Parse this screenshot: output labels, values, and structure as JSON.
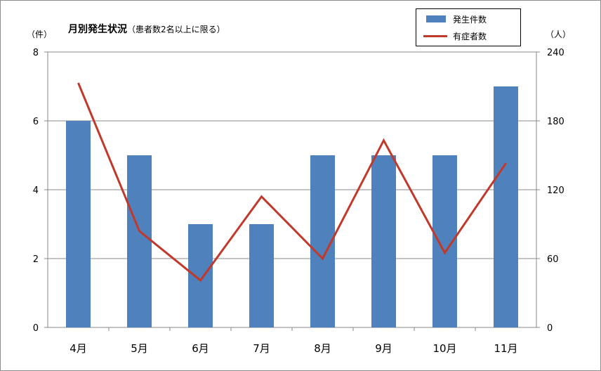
{
  "colors": {
    "bar": "#4f81bd",
    "line": "#c0392b",
    "grid": "#888888",
    "frame": "#8c8c8c"
  },
  "header": {
    "title": "月別発生状況",
    "subtitle": "（患者数2名以上に限る）"
  },
  "legend": {
    "bar_label": "発生件数",
    "line_label": "有症者数"
  },
  "axes": {
    "y_left_unit": "（件）",
    "y_right_unit": "（人）"
  },
  "chart_data": {
    "type": "bar",
    "title": "月別発生状況（患者数2名以上に限る）",
    "categories": [
      "4月",
      "5月",
      "6月",
      "7月",
      "8月",
      "9月",
      "10月",
      "11月"
    ],
    "series": [
      {
        "name": "発生件数",
        "type": "bar",
        "axis": "left",
        "values": [
          6,
          5,
          3,
          3,
          5,
          5,
          5,
          7
        ]
      },
      {
        "name": "有症者数",
        "type": "line",
        "axis": "right",
        "values": [
          213,
          84,
          41,
          114,
          60,
          163,
          65,
          143
        ]
      }
    ],
    "y_left": {
      "label": "（件）",
      "lim": [
        0,
        8
      ],
      "ticks": [
        "0",
        "2",
        "4",
        "6",
        "8"
      ]
    },
    "y_right": {
      "label": "（人）",
      "lim": [
        0,
        240
      ],
      "ticks": [
        "0",
        "60",
        "120",
        "180",
        "240"
      ]
    },
    "grid": true,
    "legend_position": "top-right"
  }
}
